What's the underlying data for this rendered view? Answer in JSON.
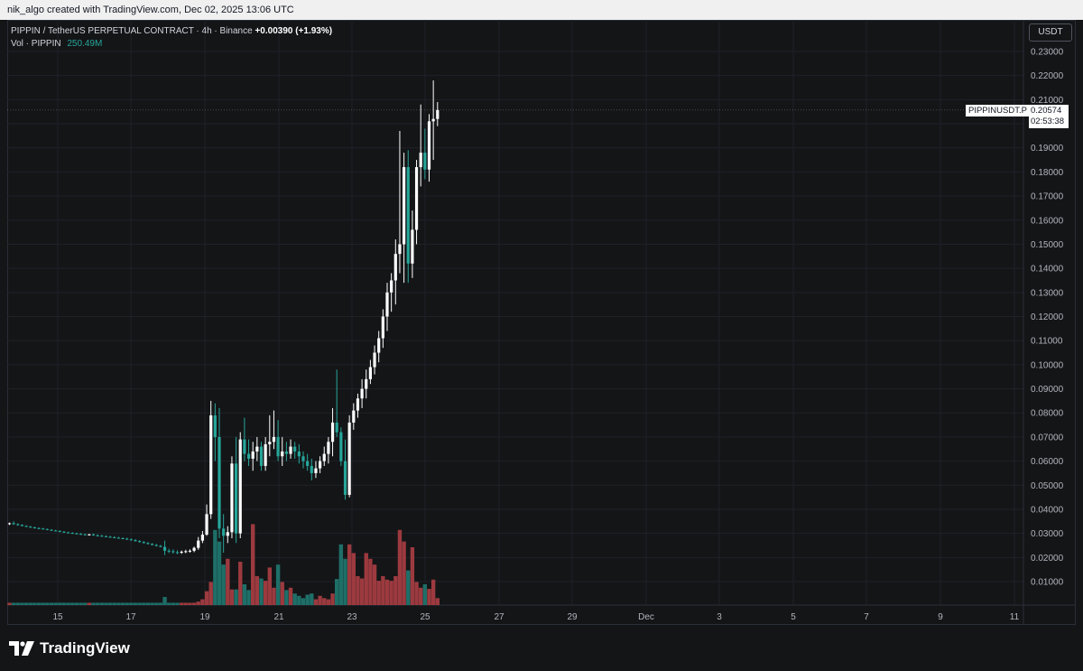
{
  "credit": "nik_algo created with TradingView.com, Dec 02, 2025 13:06 UTC",
  "legend": {
    "symbol": "PIPPIN / TetherUS PERPETUAL CONTRACT · 4h · Binance",
    "change": "+0.00390 (+1.93%)",
    "vol_label": "Vol · PIPPIN",
    "vol_value": "250.49M"
  },
  "currency_button": "USDT",
  "price_label": {
    "ticker": "PIPPINUSDT.P",
    "price": "0.20574",
    "countdown": "02:53:38"
  },
  "brand": "TradingView",
  "colors": {
    "up": "#ffffff",
    "down": "#26a69a",
    "vol_up": "#9c3a3f",
    "vol_down": "#1e6f68",
    "grid": "#1f2128"
  },
  "chart_data": {
    "type": "candlestick",
    "title": "PIPPIN / TetherUS PERPETUAL CONTRACT · 4h · Binance",
    "ylim": [
      0.0,
      0.235
    ],
    "y_ticks": [
      "0.01000",
      "0.02000",
      "0.03000",
      "0.04000",
      "0.05000",
      "0.06000",
      "0.07000",
      "0.08000",
      "0.09000",
      "0.10000",
      "0.11000",
      "0.12000",
      "0.13000",
      "0.14000",
      "0.15000",
      "0.16000",
      "0.17000",
      "0.18000",
      "0.19000",
      "0.20000",
      "0.21000",
      "0.22000",
      "0.23000"
    ],
    "x_ticks": [
      "15",
      "17",
      "19",
      "21",
      "23",
      "25",
      "27",
      "29",
      "Dec",
      "3",
      "5",
      "7",
      "9",
      "11"
    ],
    "candles": [
      [
        0.034,
        0.0345,
        0.0335,
        0.0342
      ],
      [
        0.0342,
        0.035,
        0.0336,
        0.0338
      ],
      [
        0.0338,
        0.0342,
        0.0332,
        0.0335
      ],
      [
        0.0335,
        0.0338,
        0.0329,
        0.0331
      ],
      [
        0.0331,
        0.0334,
        0.0326,
        0.0328
      ],
      [
        0.0328,
        0.0331,
        0.0323,
        0.0325
      ],
      [
        0.0325,
        0.0328,
        0.032,
        0.0322
      ],
      [
        0.0322,
        0.0325,
        0.0318,
        0.032
      ],
      [
        0.032,
        0.0323,
        0.0316,
        0.0318
      ],
      [
        0.0318,
        0.032,
        0.0313,
        0.0315
      ],
      [
        0.0315,
        0.0318,
        0.031,
        0.0312
      ],
      [
        0.0312,
        0.0315,
        0.0308,
        0.031
      ],
      [
        0.031,
        0.0313,
        0.0305,
        0.0307
      ],
      [
        0.0307,
        0.031,
        0.0302,
        0.0304
      ],
      [
        0.0304,
        0.0307,
        0.03,
        0.0302
      ],
      [
        0.0302,
        0.0305,
        0.0298,
        0.03
      ],
      [
        0.03,
        0.0303,
        0.0296,
        0.0298
      ],
      [
        0.0298,
        0.0301,
        0.0294,
        0.0296
      ],
      [
        0.0296,
        0.0299,
        0.0292,
        0.0294
      ],
      [
        0.0294,
        0.0298,
        0.0291,
        0.0296
      ],
      [
        0.0296,
        0.0299,
        0.029,
        0.0292
      ],
      [
        0.0292,
        0.0296,
        0.0288,
        0.029
      ],
      [
        0.029,
        0.0294,
        0.0286,
        0.0288
      ],
      [
        0.0288,
        0.0292,
        0.0284,
        0.0286
      ],
      [
        0.0286,
        0.029,
        0.0282,
        0.0284
      ],
      [
        0.0284,
        0.0288,
        0.028,
        0.0282
      ],
      [
        0.0282,
        0.0286,
        0.0278,
        0.028
      ],
      [
        0.028,
        0.0284,
        0.0276,
        0.0278
      ],
      [
        0.0278,
        0.0282,
        0.0273,
        0.0275
      ],
      [
        0.0275,
        0.0279,
        0.027,
        0.0272
      ],
      [
        0.0272,
        0.0276,
        0.0266,
        0.0268
      ],
      [
        0.0268,
        0.0272,
        0.0262,
        0.0264
      ],
      [
        0.0264,
        0.0268,
        0.0258,
        0.026
      ],
      [
        0.026,
        0.0264,
        0.0254,
        0.0256
      ],
      [
        0.0256,
        0.026,
        0.025,
        0.0252
      ],
      [
        0.0252,
        0.0256,
        0.0246,
        0.0248
      ],
      [
        0.0248,
        0.0252,
        0.0242,
        0.0244
      ],
      [
        0.0244,
        0.027,
        0.021,
        0.0228
      ],
      [
        0.0228,
        0.0236,
        0.0218,
        0.0226
      ],
      [
        0.0226,
        0.0234,
        0.0216,
        0.0222
      ],
      [
        0.0222,
        0.023,
        0.0214,
        0.022
      ],
      [
        0.022,
        0.0229,
        0.0215,
        0.0224
      ],
      [
        0.0224,
        0.0232,
        0.0218,
        0.0226
      ],
      [
        0.0226,
        0.0234,
        0.022,
        0.0228
      ],
      [
        0.0228,
        0.0245,
        0.0222,
        0.024
      ],
      [
        0.024,
        0.0285,
        0.0232,
        0.027
      ],
      [
        0.027,
        0.031,
        0.026,
        0.0295
      ],
      [
        0.0295,
        0.042,
        0.029,
        0.038
      ],
      [
        0.038,
        0.085,
        0.036,
        0.079
      ],
      [
        0.079,
        0.084,
        0.06,
        0.07
      ],
      [
        0.07,
        0.082,
        0.028,
        0.032
      ],
      [
        0.032,
        0.038,
        0.022,
        0.029
      ],
      [
        0.029,
        0.033,
        0.026,
        0.0305
      ],
      [
        0.0305,
        0.062,
        0.028,
        0.059
      ],
      [
        0.059,
        0.07,
        0.026,
        0.03
      ],
      [
        0.03,
        0.072,
        0.028,
        0.069
      ],
      [
        0.069,
        0.078,
        0.06,
        0.063
      ],
      [
        0.063,
        0.069,
        0.058,
        0.061
      ],
      [
        0.061,
        0.068,
        0.056,
        0.064
      ],
      [
        0.064,
        0.07,
        0.06,
        0.066
      ],
      [
        0.066,
        0.068,
        0.056,
        0.058
      ],
      [
        0.058,
        0.07,
        0.056,
        0.067
      ],
      [
        0.067,
        0.079,
        0.062,
        0.068
      ],
      [
        0.068,
        0.081,
        0.065,
        0.07
      ],
      [
        0.07,
        0.077,
        0.06,
        0.062
      ],
      [
        0.062,
        0.07,
        0.058,
        0.064
      ],
      [
        0.064,
        0.068,
        0.06,
        0.063
      ],
      [
        0.063,
        0.069,
        0.061,
        0.066
      ],
      [
        0.066,
        0.068,
        0.061,
        0.064
      ],
      [
        0.064,
        0.067,
        0.059,
        0.062
      ],
      [
        0.062,
        0.064,
        0.057,
        0.06
      ],
      [
        0.06,
        0.063,
        0.056,
        0.058
      ],
      [
        0.058,
        0.061,
        0.052,
        0.055
      ],
      [
        0.055,
        0.06,
        0.053,
        0.057
      ],
      [
        0.057,
        0.062,
        0.055,
        0.06
      ],
      [
        0.06,
        0.066,
        0.058,
        0.063
      ],
      [
        0.063,
        0.07,
        0.059,
        0.068
      ],
      [
        0.068,
        0.082,
        0.062,
        0.076
      ],
      [
        0.076,
        0.098,
        0.07,
        0.072
      ],
      [
        0.072,
        0.074,
        0.058,
        0.06
      ],
      [
        0.06,
        0.069,
        0.044,
        0.046
      ],
      [
        0.046,
        0.079,
        0.045,
        0.076
      ],
      [
        0.076,
        0.084,
        0.073,
        0.081
      ],
      [
        0.081,
        0.088,
        0.078,
        0.086
      ],
      [
        0.086,
        0.094,
        0.082,
        0.09
      ],
      [
        0.09,
        0.098,
        0.086,
        0.094
      ],
      [
        0.094,
        0.102,
        0.092,
        0.099
      ],
      [
        0.099,
        0.108,
        0.096,
        0.105
      ],
      [
        0.105,
        0.114,
        0.101,
        0.111
      ],
      [
        0.111,
        0.123,
        0.107,
        0.12
      ],
      [
        0.12,
        0.134,
        0.114,
        0.13
      ],
      [
        0.13,
        0.138,
        0.122,
        0.135
      ],
      [
        0.135,
        0.152,
        0.125,
        0.146
      ],
      [
        0.146,
        0.197,
        0.138,
        0.15
      ],
      [
        0.15,
        0.188,
        0.134,
        0.182
      ],
      [
        0.182,
        0.189,
        0.134,
        0.142
      ],
      [
        0.142,
        0.164,
        0.136,
        0.156
      ],
      [
        0.156,
        0.185,
        0.15,
        0.182
      ],
      [
        0.182,
        0.208,
        0.174,
        0.188
      ],
      [
        0.188,
        0.198,
        0.177,
        0.181
      ],
      [
        0.181,
        0.204,
        0.176,
        0.201
      ],
      [
        0.201,
        0.218,
        0.185,
        0.202
      ],
      [
        0.202,
        0.209,
        0.199,
        0.2057
      ]
    ],
    "volume": [
      0.4,
      0.4,
      0.4,
      0.4,
      0.4,
      0.4,
      0.4,
      0.4,
      0.4,
      0.4,
      0.4,
      0.4,
      0.4,
      0.4,
      0.4,
      0.4,
      0.4,
      0.4,
      0.4,
      0.4,
      0.4,
      0.4,
      0.4,
      0.4,
      0.4,
      0.4,
      0.4,
      0.4,
      0.4,
      0.4,
      0.4,
      0.4,
      0.4,
      0.4,
      0.4,
      0.4,
      0.4,
      1.4,
      0.4,
      0.4,
      0.4,
      0.4,
      0.4,
      0.4,
      0.4,
      0.6,
      1.0,
      2.4,
      4.0,
      13.0,
      11.0,
      7.0,
      8.0,
      2.7,
      2.7,
      7.5,
      3.6,
      2.6,
      14.0,
      5.0,
      4.6,
      4.2,
      6.5,
      3.0,
      7.0,
      4.0,
      2.6,
      3.0,
      2.0,
      1.6,
      1.2,
      1.8,
      2.0,
      1.0,
      1.6,
      1.2,
      1.0,
      2.0,
      4.5,
      10.5,
      8.0,
      10.5,
      9.0,
      5.0,
      4.6,
      9.0,
      8.0,
      7.0,
      4.2,
      5.0,
      4.4,
      4.2,
      5.0,
      13.0,
      11.0,
      6.0,
      10.0,
      4.0,
      3.0,
      3.6,
      2.8,
      4.4,
      1.2
    ]
  }
}
